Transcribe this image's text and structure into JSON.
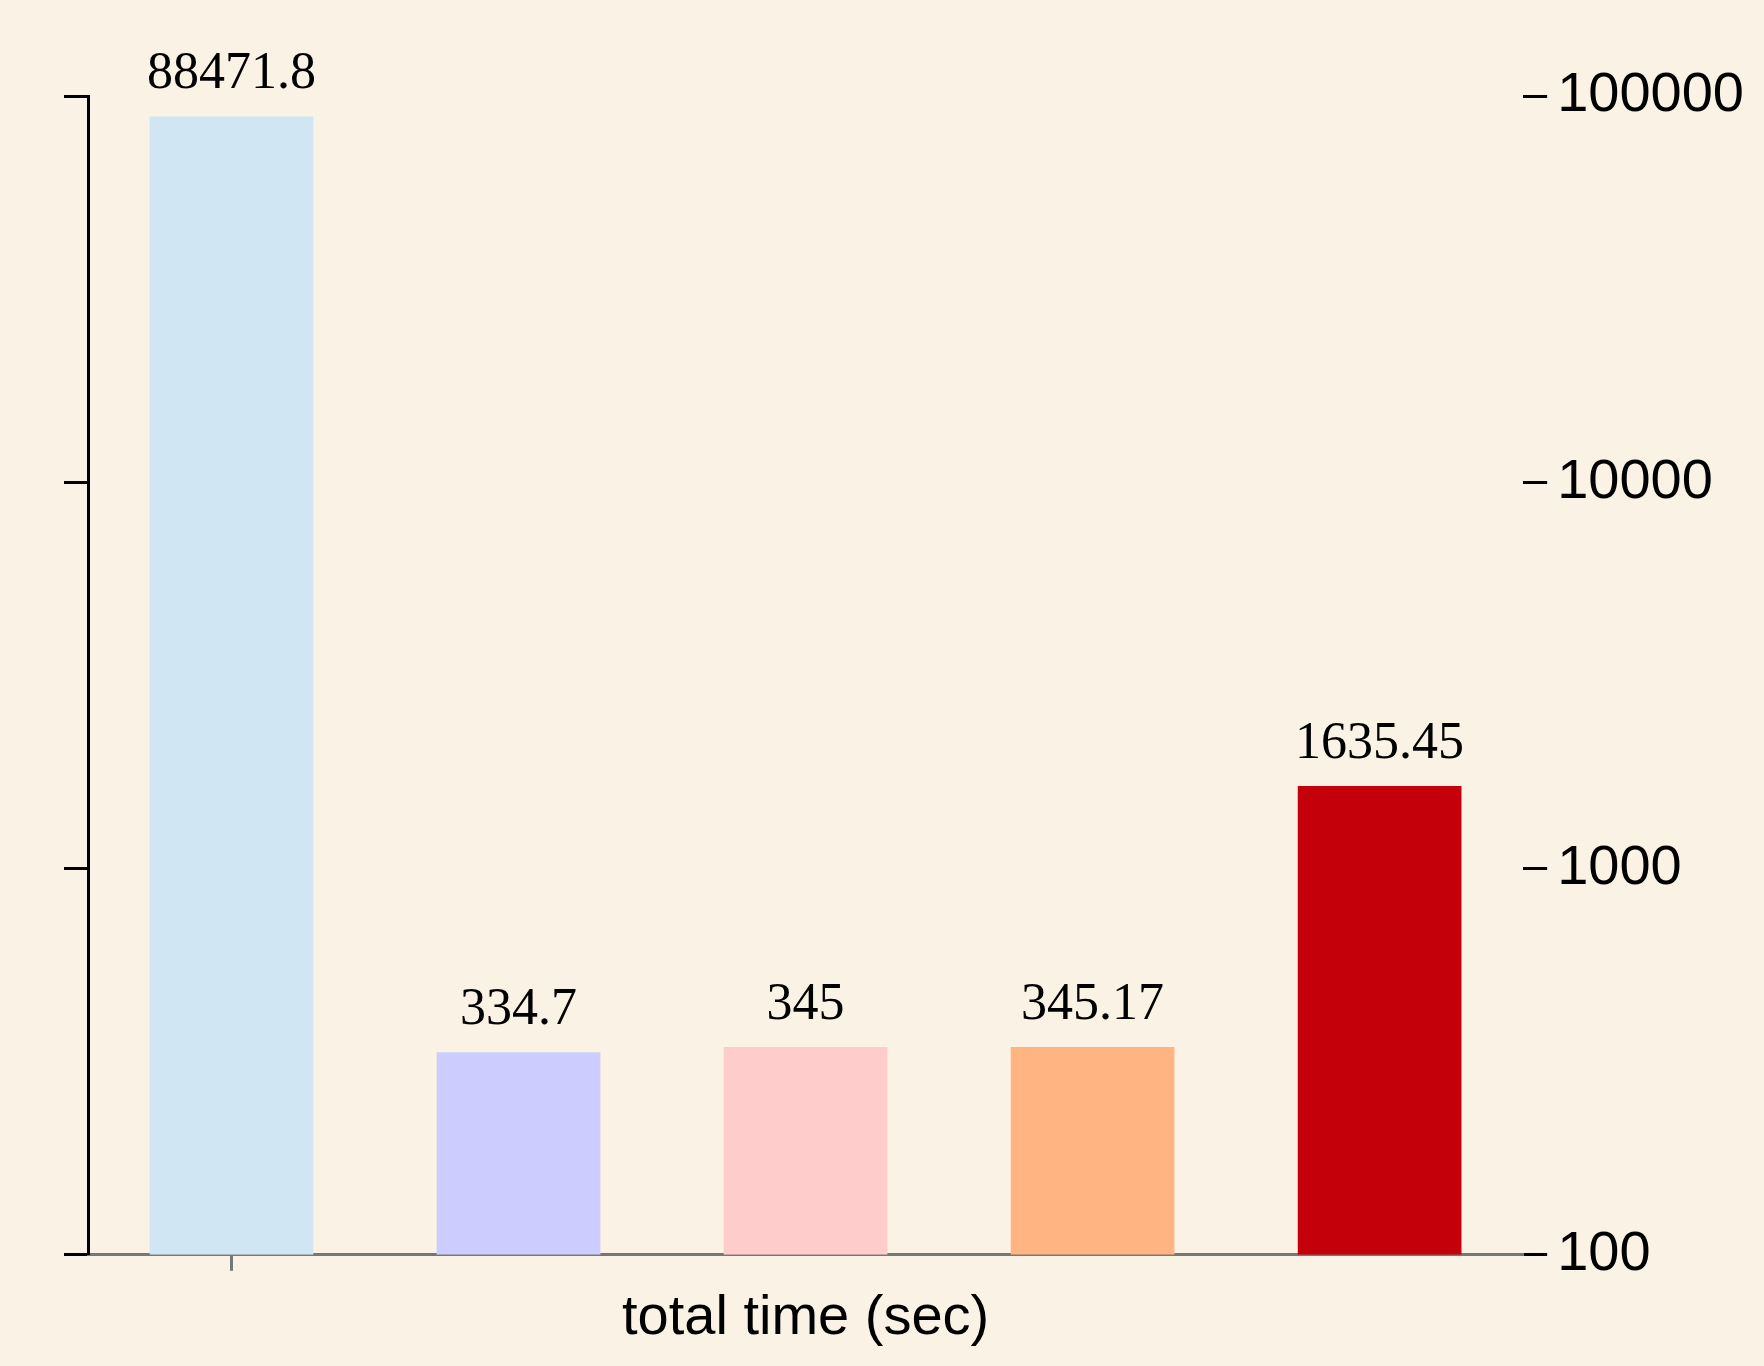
{
  "chart_data": {
    "type": "bar",
    "xlabel": "total time (sec)",
    "categories": [
      null,
      null,
      null,
      null,
      null
    ],
    "values": [
      88471.8,
      334.7,
      345,
      345.17,
      1635.45
    ],
    "colors": [
      "#d0e6f3",
      "#ccccff",
      "#ffcccc",
      "#ffb482",
      "#c4000b"
    ],
    "log": "y",
    "ylim": [
      100,
      100000
    ],
    "yticks": [
      100,
      1000,
      10000,
      100000
    ],
    "grid": false,
    "legend": false,
    "data_labels": true
  }
}
